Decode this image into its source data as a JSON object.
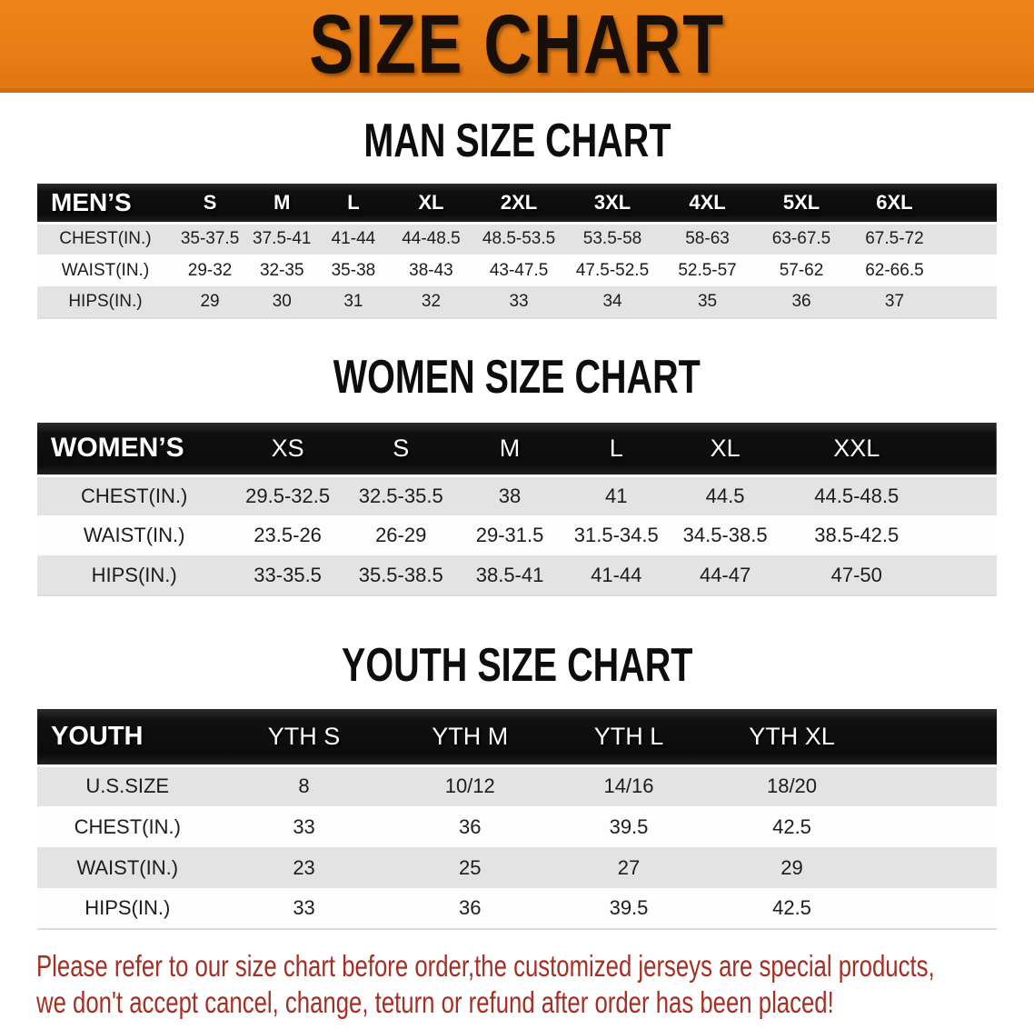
{
  "banner": {
    "title": "SIZE CHART"
  },
  "colors": {
    "banner_bg": "#e87d15",
    "banner_border": "#cf6d0e",
    "header_bar": "#111111",
    "stripe_row": "#e3e3e3",
    "plain_row": "#fdfdfd",
    "disclaimer_text": "#a52f23"
  },
  "men": {
    "heading": "MAN SIZE CHART",
    "table": {
      "label": "MEN’S",
      "columns": [
        "S",
        "M",
        "L",
        "XL",
        "2XL",
        "3XL",
        "4XL",
        "5XL",
        "6XL"
      ],
      "rows": [
        {
          "label": "CHEST(IN.)",
          "values": [
            "35-37.5",
            "37.5-41",
            "41-44",
            "44-48.5",
            "48.5-53.5",
            "53.5-58",
            "58-63",
            "63-67.5",
            "67.5-72"
          ]
        },
        {
          "label": "WAIST(IN.)",
          "values": [
            "29-32",
            "32-35",
            "35-38",
            "38-43",
            "43-47.5",
            "47.5-52.5",
            "52.5-57",
            "57-62",
            "62-66.5"
          ]
        },
        {
          "label": "HIPS(IN.)",
          "values": [
            "29",
            "30",
            "31",
            "32",
            "33",
            "34",
            "35",
            "36",
            "37"
          ]
        }
      ]
    }
  },
  "women": {
    "heading": "WOMEN SIZE CHART",
    "table": {
      "label": "WOMEN’S",
      "columns": [
        "XS",
        "S",
        "M",
        "L",
        "XL",
        "XXL"
      ],
      "rows": [
        {
          "label": "CHEST(IN.)",
          "values": [
            "29.5-32.5",
            "32.5-35.5",
            "38",
            "41",
            "44.5",
            "44.5-48.5"
          ]
        },
        {
          "label": "WAIST(IN.)",
          "values": [
            "23.5-26",
            "26-29",
            "29-31.5",
            "31.5-34.5",
            "34.5-38.5",
            "38.5-42.5"
          ]
        },
        {
          "label": "HIPS(IN.)",
          "values": [
            "33-35.5",
            "35.5-38.5",
            "38.5-41",
            "41-44",
            "44-47",
            "47-50"
          ]
        }
      ]
    }
  },
  "youth": {
    "heading": "YOUTH SIZE CHART",
    "table": {
      "label": "YOUTH",
      "columns": [
        "YTH S",
        "YTH M",
        "YTH L",
        "YTH XL"
      ],
      "rows": [
        {
          "label": "U.S.SIZE",
          "values": [
            "8",
            "10/12",
            "14/16",
            "18/20"
          ]
        },
        {
          "label": "CHEST(IN.)",
          "values": [
            "33",
            "36",
            "39.5",
            "42.5"
          ]
        },
        {
          "label": "WAIST(IN.)",
          "values": [
            "23",
            "25",
            "27",
            "29"
          ]
        },
        {
          "label": "HIPS(IN.)",
          "values": [
            "33",
            "36",
            "39.5",
            "42.5"
          ]
        }
      ]
    }
  },
  "disclaimer": {
    "line1": "Please refer to our size chart before order,the customized jerseys are special products,",
    "line2": "we don't accept cancel, change, teturn or refund after order has been placed!"
  }
}
